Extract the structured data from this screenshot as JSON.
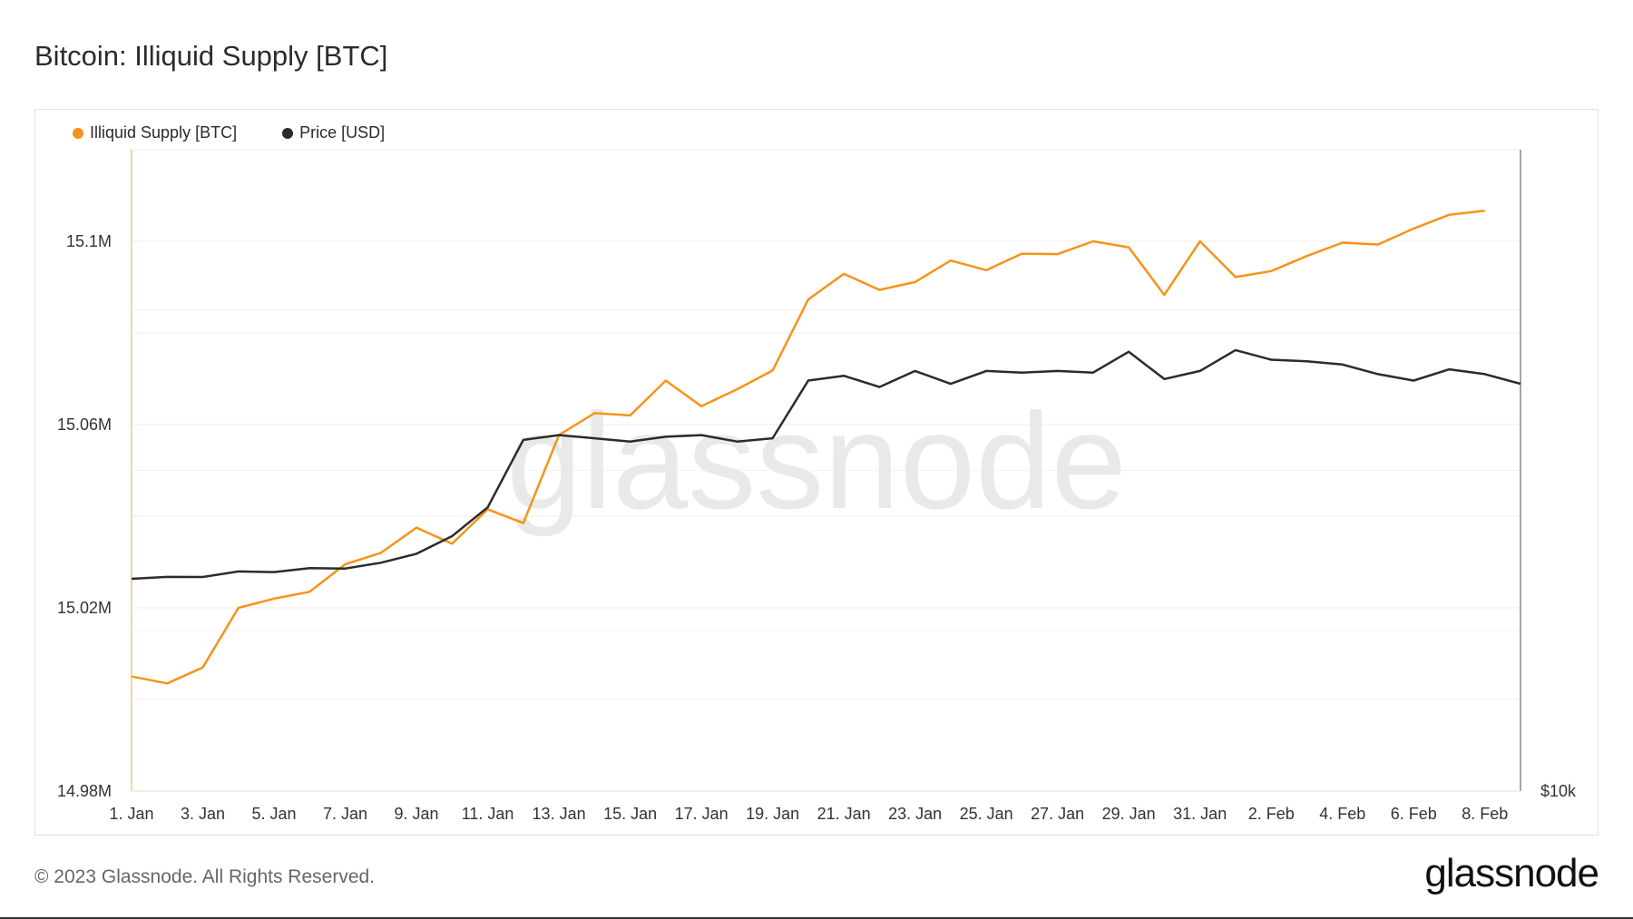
{
  "title": "Bitcoin: Illiquid Supply [BTC]",
  "footer": "© 2023 Glassnode. All Rights Reserved.",
  "brand": "glassnode",
  "watermark": "glassnode",
  "colors": {
    "supply": "#f7931a",
    "price": "#2b2b2b",
    "grid": "#ececec"
  },
  "chart_data": {
    "type": "line",
    "x_tick_labels": [
      "1. Jan",
      "3. Jan",
      "5. Jan",
      "7. Jan",
      "9. Jan",
      "11. Jan",
      "13. Jan",
      "15. Jan",
      "17. Jan",
      "19. Jan",
      "21. Jan",
      "23. Jan",
      "25. Jan",
      "27. Jan",
      "29. Jan",
      "31. Jan",
      "2. Feb",
      "4. Feb",
      "6. Feb",
      "8. Feb"
    ],
    "y_left": {
      "ylim": [
        14.98,
        15.12
      ],
      "ticks": [
        "15.1M",
        "15.06M",
        "15.02M",
        "14.98M"
      ],
      "tick_values": [
        15.1,
        15.06,
        15.02,
        14.98
      ],
      "unit": "M"
    },
    "y_right": {
      "ticks": [
        "$10k"
      ]
    },
    "legend": {
      "placement": "top-left"
    },
    "series": [
      {
        "name": "Illiquid Supply [BTC]",
        "axis": "left",
        "color": "#f7931a",
        "x": [
          "1. Jan",
          "2. Jan",
          "3. Jan",
          "4. Jan",
          "5. Jan",
          "6. Jan",
          "7. Jan",
          "8. Jan",
          "9. Jan",
          "10. Jan",
          "11. Jan",
          "12. Jan",
          "13. Jan",
          "14. Jan",
          "15. Jan",
          "16. Jan",
          "17. Jan",
          "18. Jan",
          "19. Jan",
          "20. Jan",
          "21. Jan",
          "22. Jan",
          "23. Jan",
          "24. Jan",
          "25. Jan",
          "26. Jan",
          "27. Jan",
          "28. Jan",
          "29. Jan",
          "30. Jan",
          "31. Jan",
          "1. Feb",
          "2. Feb",
          "3. Feb",
          "4. Feb",
          "5. Feb",
          "6. Feb",
          "7. Feb",
          "8. Feb"
        ],
        "values": [
          15.005,
          15.0035,
          15.007,
          15.02,
          15.022,
          15.0235,
          15.0295,
          15.032,
          15.0375,
          15.034,
          15.0415,
          15.0385,
          15.0577,
          15.0625,
          15.062,
          15.0696,
          15.064,
          15.0677,
          15.0718,
          15.0873,
          15.0929,
          15.0894,
          15.0911,
          15.0958,
          15.0937,
          15.0973,
          15.0972,
          15.1,
          15.0987,
          15.0883,
          15.1,
          15.0922,
          15.0935,
          15.0968,
          15.0997,
          15.0993,
          15.1028,
          15.1058,
          15.1067
        ]
      },
      {
        "name": "Price [USD]",
        "axis": "right",
        "color": "#2b2b2b",
        "x": [
          "1. Jan",
          "2. Jan",
          "3. Jan",
          "4. Jan",
          "5. Jan",
          "6. Jan",
          "7. Jan",
          "8. Jan",
          "9. Jan",
          "10. Jan",
          "11. Jan",
          "12. Jan",
          "13. Jan",
          "14. Jan",
          "15. Jan",
          "16. Jan",
          "17. Jan",
          "18. Jan",
          "19. Jan",
          "20. Jan",
          "21. Jan",
          "22. Jan",
          "23. Jan",
          "24. Jan",
          "25. Jan",
          "26. Jan",
          "27. Jan",
          "28. Jan",
          "29. Jan",
          "30. Jan",
          "31. Jan",
          "1. Feb",
          "2. Feb",
          "3. Feb",
          "4. Feb",
          "5. Feb",
          "6. Feb",
          "7. Feb",
          "8. Feb",
          "9. Feb"
        ],
        "values": [
          16620,
          16680,
          16675,
          16850,
          16830,
          16950,
          16940,
          17120,
          17400,
          17950,
          18850,
          20950,
          21100,
          21000,
          20900,
          21050,
          21100,
          20900,
          21000,
          22800,
          22950,
          22600,
          23100,
          22700,
          23100,
          23050,
          23100,
          23050,
          23700,
          22850,
          23100,
          23750,
          23450,
          23400,
          23300,
          23000,
          22800,
          23150,
          23000,
          22700
        ]
      }
    ]
  }
}
